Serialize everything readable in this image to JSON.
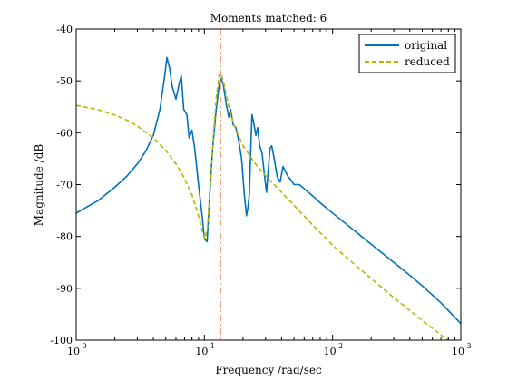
{
  "chart_data": {
    "type": "line",
    "title": "Moments matched: 6",
    "xlabel": "Frequency /rad/sec",
    "ylabel": "Magnitude /dB",
    "xscale": "log",
    "xlim": [
      1,
      1000
    ],
    "ylim": [
      -100,
      -40
    ],
    "xticks": [
      1,
      10,
      100,
      1000
    ],
    "xtick_labels": [
      {
        "base": "10",
        "exp": "0"
      },
      {
        "base": "10",
        "exp": "1"
      },
      {
        "base": "10",
        "exp": "2"
      },
      {
        "base": "10",
        "exp": "3"
      }
    ],
    "yticks": [
      -100,
      -90,
      -80,
      -70,
      -60,
      -50,
      -40
    ],
    "ytick_labels": [
      "-100",
      "-90",
      "-80",
      "-70",
      "-60",
      "-50",
      "-40"
    ],
    "grid": false,
    "legend_position": "top-right",
    "series": [
      {
        "name": "original",
        "color": "#0072bd",
        "style": "solid",
        "points": [
          [
            1.0,
            -75.5
          ],
          [
            1.5,
            -73.0
          ],
          [
            2.0,
            -70.5
          ],
          [
            2.5,
            -68.3
          ],
          [
            3.0,
            -66.0
          ],
          [
            3.5,
            -63.5
          ],
          [
            4.0,
            -60.5
          ],
          [
            4.5,
            -55.5
          ],
          [
            4.9,
            -49.0
          ],
          [
            5.1,
            -45.5
          ],
          [
            5.35,
            -47.5
          ],
          [
            5.6,
            -51.0
          ],
          [
            6.0,
            -53.5
          ],
          [
            6.3,
            -51.0
          ],
          [
            6.6,
            -49.0
          ],
          [
            6.9,
            -55.5
          ],
          [
            7.3,
            -56.5
          ],
          [
            7.6,
            -61.0
          ],
          [
            8.0,
            -59.5
          ],
          [
            8.4,
            -63.0
          ],
          [
            9.0,
            -70.0
          ],
          [
            9.6,
            -76.0
          ],
          [
            10.0,
            -80.5
          ],
          [
            10.5,
            -81.0
          ],
          [
            11.0,
            -72.0
          ],
          [
            11.6,
            -63.0
          ],
          [
            12.3,
            -56.0
          ],
          [
            13.0,
            -51.0
          ],
          [
            13.4,
            -49.5
          ],
          [
            14.0,
            -50.5
          ],
          [
            14.8,
            -54.5
          ],
          [
            15.5,
            -57.0
          ],
          [
            16.0,
            -55.5
          ],
          [
            16.8,
            -58.5
          ],
          [
            17.6,
            -59.0
          ],
          [
            18.5,
            -61.5
          ],
          [
            19.5,
            -65.0
          ],
          [
            20.5,
            -72.0
          ],
          [
            21.3,
            -76.0
          ],
          [
            21.8,
            -74.5
          ],
          [
            22.4,
            -72.0
          ],
          [
            23.0,
            -63.0
          ],
          [
            23.5,
            -56.5
          ],
          [
            24.2,
            -58.0
          ],
          [
            25.2,
            -60.5
          ],
          [
            26.0,
            -59.0
          ],
          [
            27.0,
            -62.5
          ],
          [
            28.2,
            -64.0
          ],
          [
            29.5,
            -68.5
          ],
          [
            30.5,
            -71.5
          ],
          [
            31.5,
            -67.0
          ],
          [
            32.5,
            -63.0
          ],
          [
            33.5,
            -62.5
          ],
          [
            35.0,
            -65.0
          ],
          [
            37.0,
            -68.5
          ],
          [
            39.0,
            -69.5
          ],
          [
            41.0,
            -66.5
          ],
          [
            43.0,
            -67.5
          ],
          [
            45.0,
            -68.5
          ],
          [
            47.0,
            -69.0
          ],
          [
            50.0,
            -70.0
          ],
          [
            55.0,
            -70.0
          ],
          [
            60.0,
            -70.8
          ],
          [
            70.0,
            -72.2
          ],
          [
            80.0,
            -73.5
          ],
          [
            100.0,
            -75.5
          ],
          [
            150.0,
            -79.0
          ],
          [
            200.0,
            -81.5
          ],
          [
            300.0,
            -85.0
          ],
          [
            400.0,
            -87.5
          ],
          [
            500.0,
            -89.5
          ],
          [
            700.0,
            -92.8
          ],
          [
            1000.0,
            -96.8
          ]
        ]
      },
      {
        "name": "reduced",
        "color": "#b5b800",
        "style": "dashed",
        "points": [
          [
            1.0,
            -54.7
          ],
          [
            1.5,
            -55.6
          ],
          [
            2.0,
            -56.6
          ],
          [
            2.5,
            -57.6
          ],
          [
            3.0,
            -58.7
          ],
          [
            4.0,
            -61.0
          ],
          [
            5.0,
            -63.4
          ],
          [
            6.0,
            -66.0
          ],
          [
            7.0,
            -68.8
          ],
          [
            8.0,
            -72.0
          ],
          [
            9.0,
            -76.0
          ],
          [
            9.6,
            -78.8
          ],
          [
            10.1,
            -80.5
          ],
          [
            10.6,
            -78.0
          ],
          [
            11.2,
            -69.0
          ],
          [
            11.8,
            -60.0
          ],
          [
            12.4,
            -53.0
          ],
          [
            13.0,
            -49.0
          ],
          [
            13.5,
            -48.5
          ],
          [
            14.2,
            -50.5
          ],
          [
            15.5,
            -55.0
          ],
          [
            17.0,
            -58.5
          ],
          [
            20.0,
            -62.5
          ],
          [
            25.0,
            -66.0
          ],
          [
            30.0,
            -68.3
          ],
          [
            40.0,
            -71.5
          ],
          [
            50.0,
            -74.0
          ],
          [
            70.0,
            -77.8
          ],
          [
            100.0,
            -81.7
          ],
          [
            150.0,
            -85.5
          ],
          [
            200.0,
            -88.1
          ],
          [
            300.0,
            -91.8
          ],
          [
            500.0,
            -96.2
          ],
          [
            700.0,
            -99.0
          ],
          [
            900.0,
            -100.8
          ]
        ]
      }
    ],
    "annotations": [
      {
        "type": "vline",
        "x": 13.3,
        "color": "#d95319",
        "style": "dashdot"
      }
    ]
  }
}
